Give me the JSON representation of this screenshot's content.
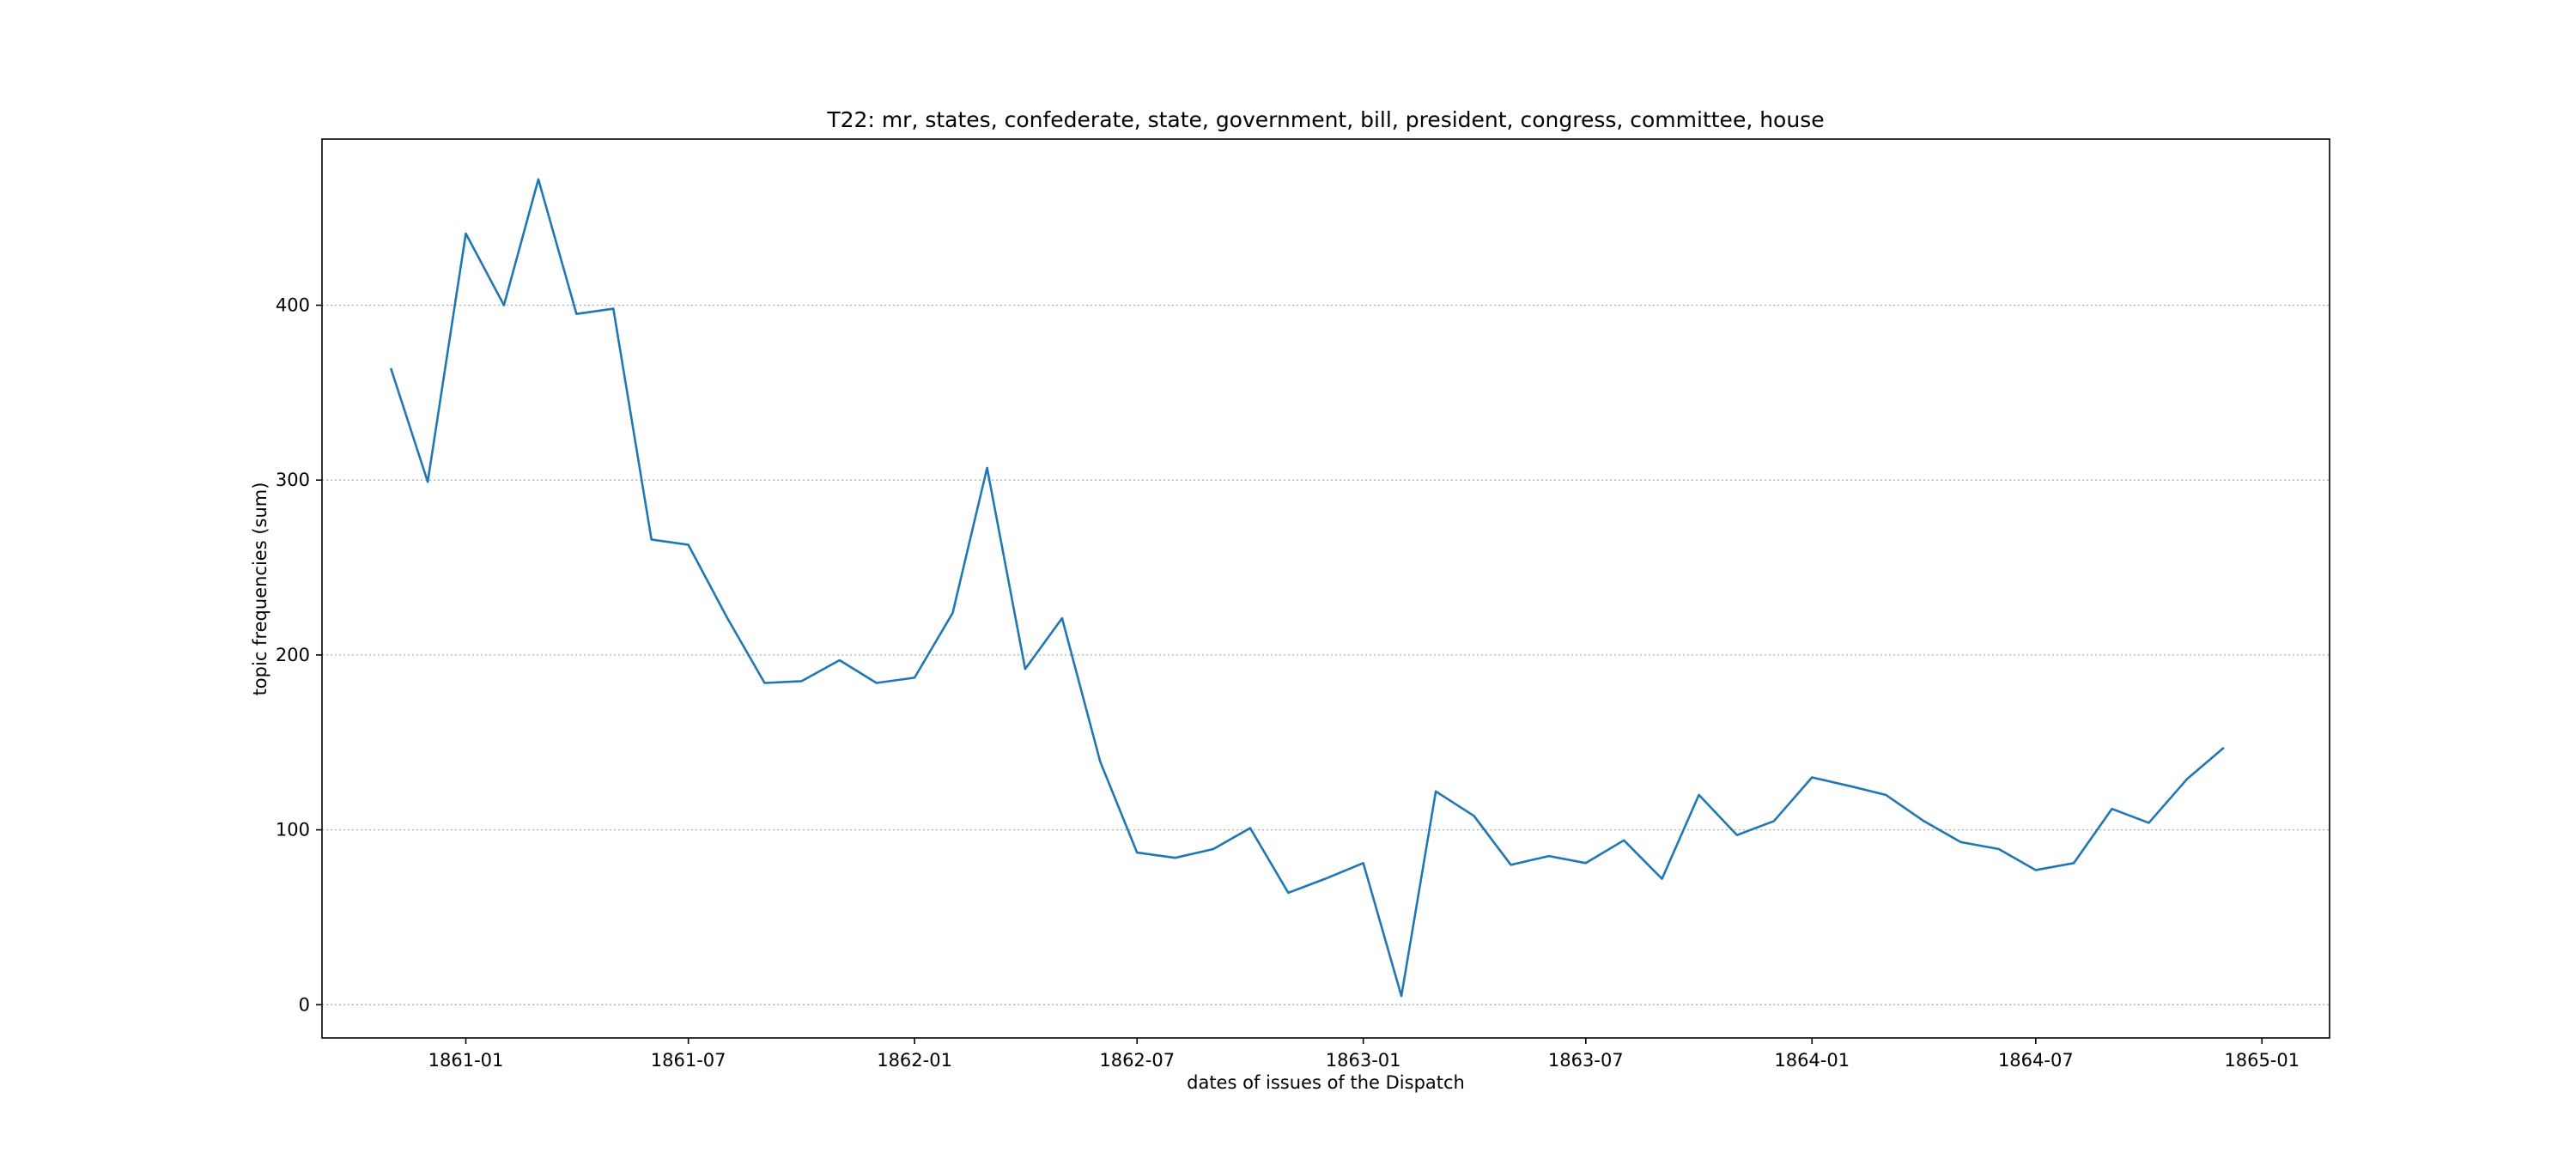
{
  "chart_data": {
    "type": "line",
    "title": "T22: mr, states, confederate, state, government, bill, president, congress, committee, house",
    "xlabel": "dates of issues of the Dispatch",
    "ylabel": "topic frequencies (sum)",
    "x_scale": "time",
    "xlim": [
      "1860-09-06",
      "1865-02-25"
    ],
    "ylim": [
      -19,
      495
    ],
    "grid": "horizontal dotted",
    "legend": "none",
    "line_color": "#1f77b4",
    "x_ticks": [
      "1861-01",
      "1861-07",
      "1862-01",
      "1862-07",
      "1863-01",
      "1863-07",
      "1864-01",
      "1864-07",
      "1865-01"
    ],
    "y_ticks": [
      0,
      100,
      200,
      300,
      400
    ],
    "series": [
      {
        "x": [
          "1860-11",
          "1860-12",
          "1861-01",
          "1861-02",
          "1861-03",
          "1861-04",
          "1861-05",
          "1861-06",
          "1861-07",
          "1861-08",
          "1861-09",
          "1861-10",
          "1861-11",
          "1861-12",
          "1862-01",
          "1862-02",
          "1862-03",
          "1862-04",
          "1862-05",
          "1862-06",
          "1862-07",
          "1862-08",
          "1862-09",
          "1862-10",
          "1862-11",
          "1862-12",
          "1863-01",
          "1863-02",
          "1863-03",
          "1863-04",
          "1863-05",
          "1863-06",
          "1863-07",
          "1863-08",
          "1863-09",
          "1863-10",
          "1863-11",
          "1863-12",
          "1864-01",
          "1864-02",
          "1864-03",
          "1864-04",
          "1864-05",
          "1864-06",
          "1864-07",
          "1864-08",
          "1864-09",
          "1864-10",
          "1864-11",
          "1864-12"
        ],
        "values": [
          364,
          299,
          441,
          400,
          472,
          395,
          398,
          266,
          263,
          222,
          184,
          185,
          197,
          184,
          187,
          224,
          307,
          192,
          221,
          139,
          87,
          84,
          89,
          101,
          64,
          72,
          81,
          5,
          122,
          108,
          80,
          85,
          81,
          94,
          72,
          120,
          97,
          105,
          130,
          125,
          120,
          105,
          93,
          89,
          77,
          81,
          112,
          104,
          129,
          147
        ]
      }
    ]
  }
}
